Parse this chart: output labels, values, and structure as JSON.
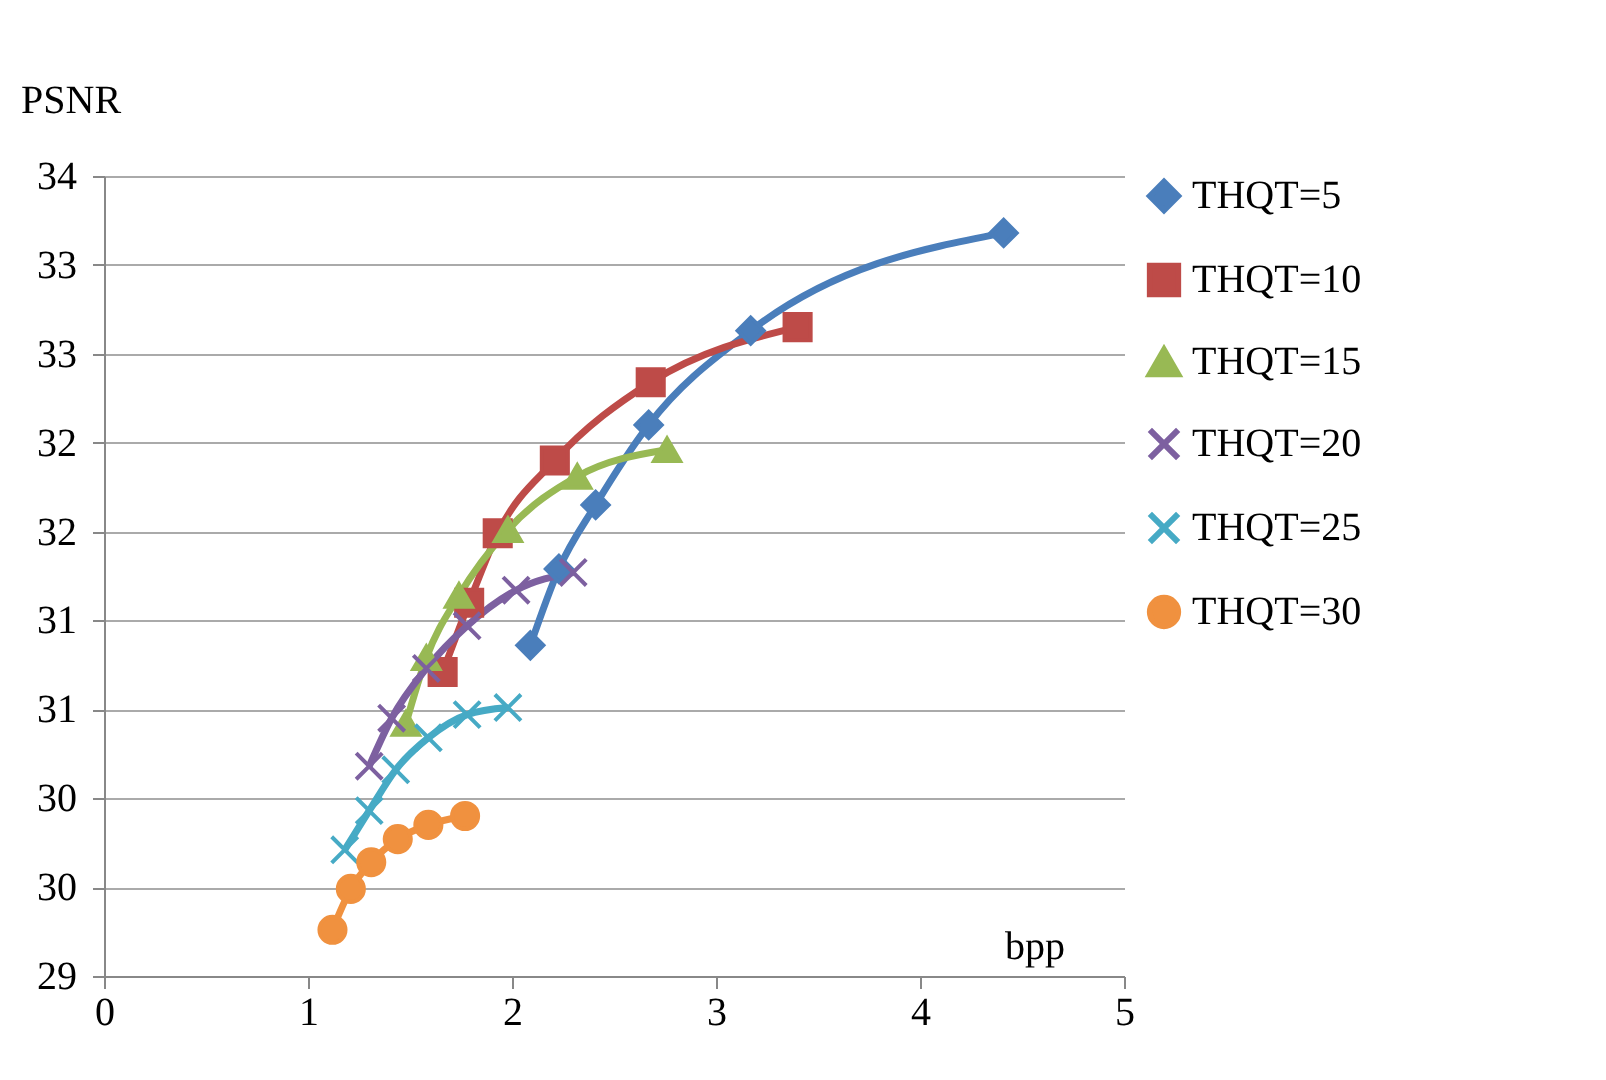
{
  "chart_data": {
    "type": "line",
    "xlabel": "bpp",
    "ylabel": "PSNR",
    "xlim": [
      0,
      5
    ],
    "xticks": [
      0,
      1,
      2,
      3,
      4,
      5
    ],
    "ylim": [
      29,
      33.5
    ],
    "yticks": [
      29,
      {
        "value": 29.5,
        "label": "30"
      },
      30,
      {
        "value": 30.5,
        "label": "31"
      },
      31,
      {
        "value": 31.5,
        "label": "32"
      },
      32,
      {
        "value": 32.5,
        "label": "33"
      },
      33,
      {
        "value": 33.5,
        "label": "34"
      }
    ],
    "grid": "y",
    "legend": "right",
    "line_style": "solid",
    "series": [
      {
        "name": "THQT=5",
        "color": "#4a7ebb",
        "marker": "diamond",
        "x": [
          2.09,
          2.23,
          2.41,
          2.67,
          3.17,
          4.41
        ],
        "values": [
          30.86,
          31.29,
          31.65,
          32.1,
          32.63,
          33.18
        ]
      },
      {
        "name": "THQT=10",
        "color": "#be4b48",
        "marker": "square",
        "x": [
          1.66,
          1.79,
          1.93,
          2.21,
          2.68,
          3.4
        ],
        "values": [
          30.71,
          31.1,
          31.49,
          31.9,
          32.34,
          32.65
        ]
      },
      {
        "name": "THQT=15",
        "color": "#98b954",
        "marker": "triangle",
        "x": [
          1.48,
          1.58,
          1.74,
          1.98,
          2.32,
          2.76
        ],
        "values": [
          30.42,
          30.79,
          31.14,
          31.51,
          31.81,
          31.96
        ]
      },
      {
        "name": "THQT=20",
        "color": "#7d60a0",
        "marker": "cross",
        "x": [
          1.3,
          1.41,
          1.58,
          1.78,
          2.02,
          2.3
        ],
        "values": [
          30.18,
          30.45,
          30.73,
          30.97,
          31.17,
          31.27
        ]
      },
      {
        "name": "THQT=25",
        "color": "#46aac5",
        "marker": "cross",
        "x": [
          1.18,
          1.3,
          1.43,
          1.59,
          1.78,
          1.98
        ],
        "values": [
          29.71,
          29.93,
          30.16,
          30.34,
          30.47,
          30.51
        ]
      },
      {
        "name": "THQT=30",
        "color": "#f0913f",
        "marker": "circle",
        "x": [
          1.12,
          1.21,
          1.31,
          1.44,
          1.59,
          1.77
        ],
        "values": [
          29.26,
          29.49,
          29.64,
          29.77,
          29.85,
          29.9
        ]
      }
    ]
  }
}
